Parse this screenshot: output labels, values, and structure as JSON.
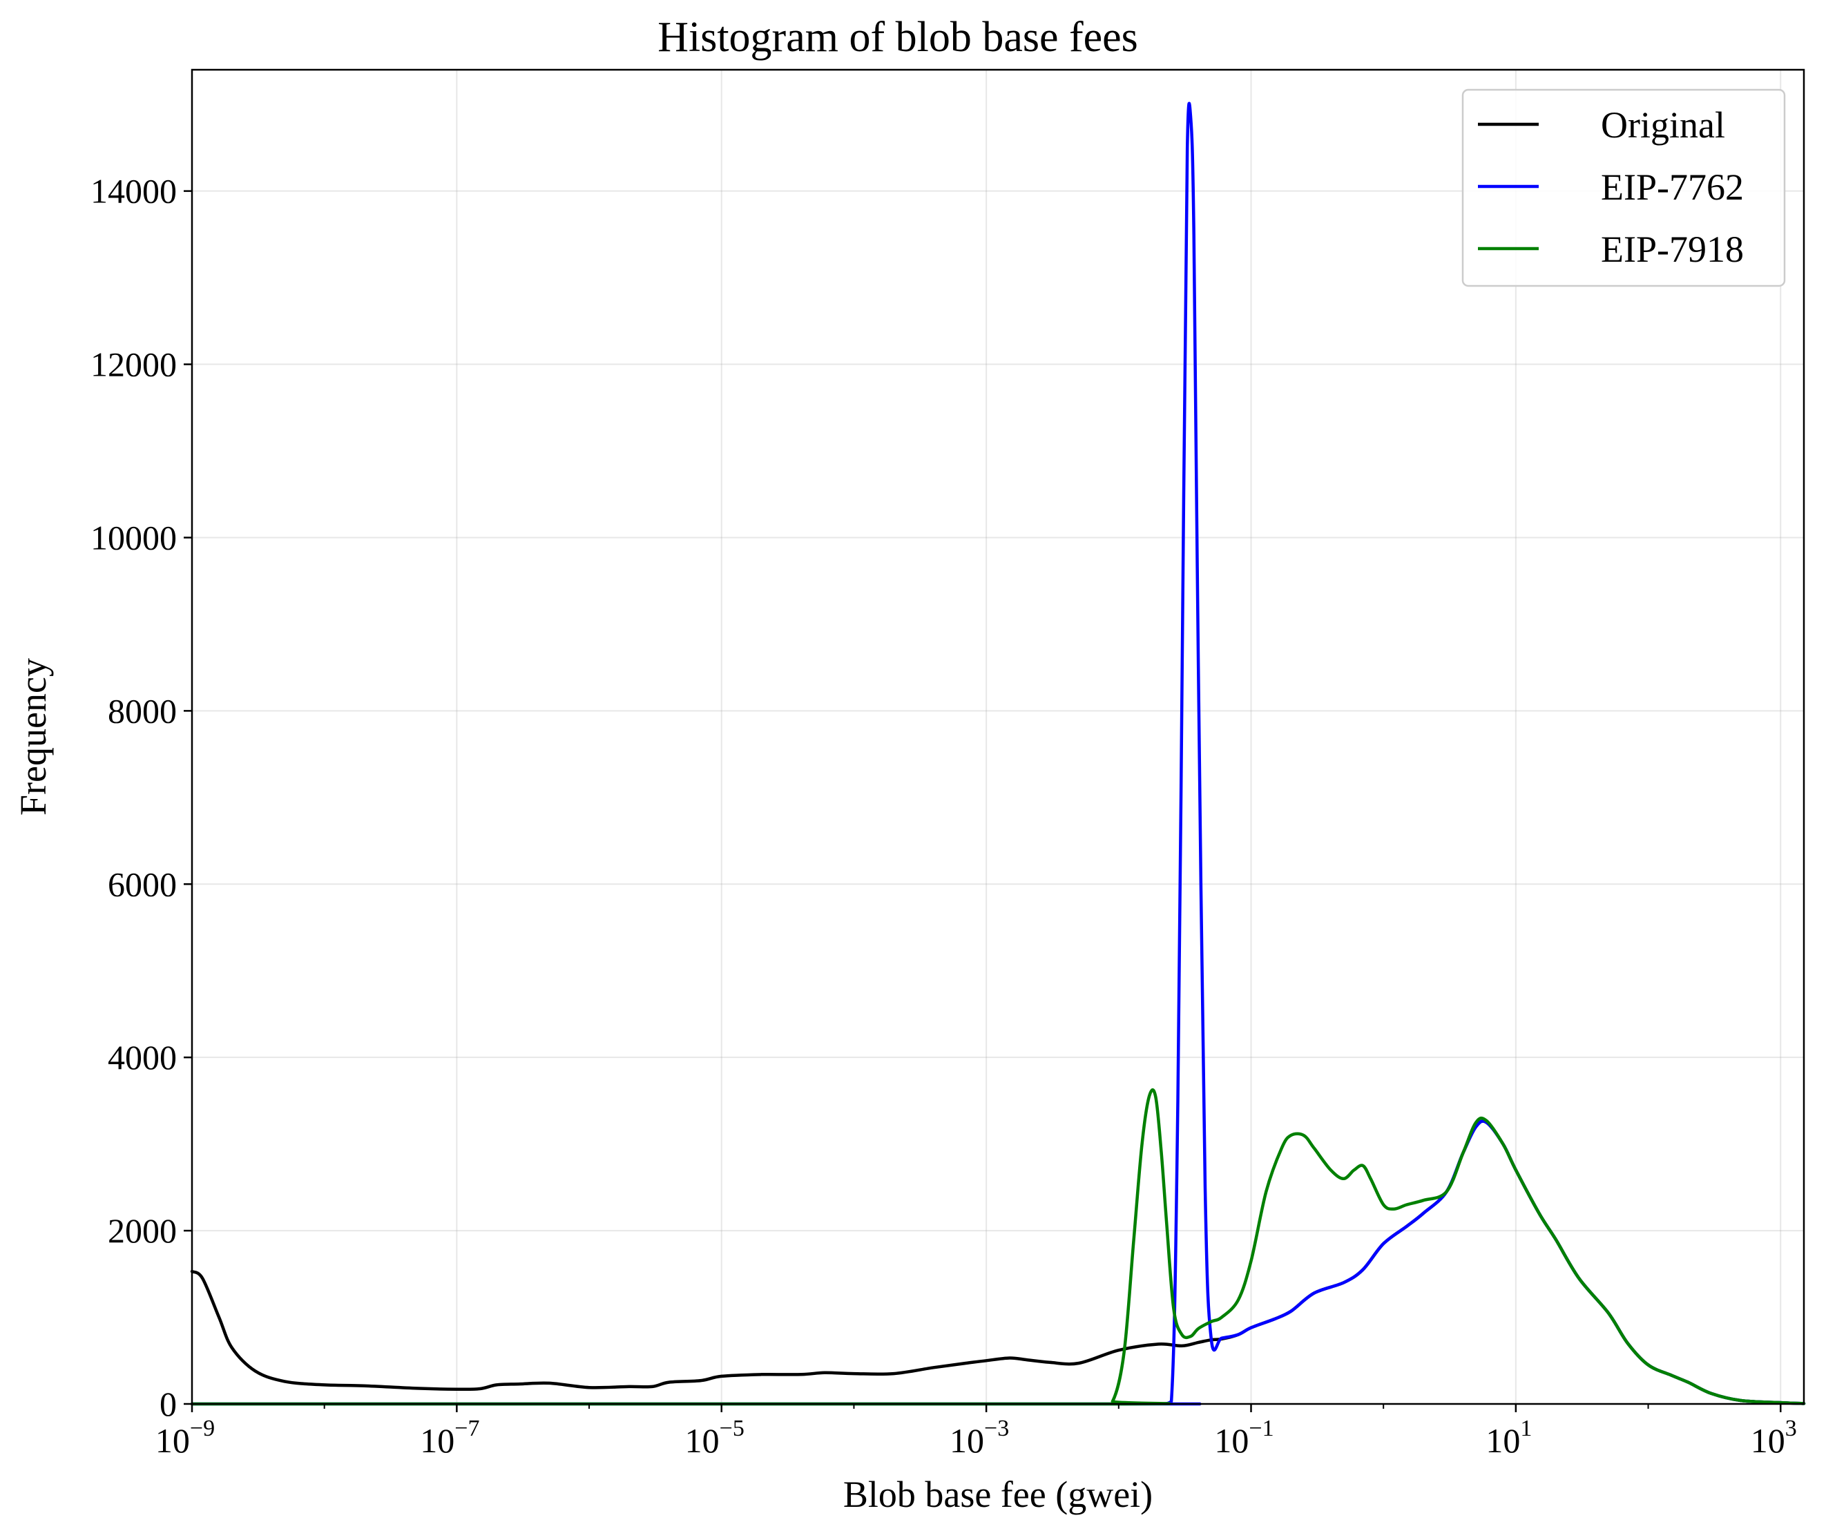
{
  "chart_data": {
    "type": "line",
    "title": "Histogram of blob base fees",
    "xlabel": "Blob base fee (gwei)",
    "ylabel": "Frequency",
    "xscale": "log",
    "xlim": [
      1e-09,
      1500
    ],
    "ylim": [
      0,
      15400
    ],
    "grid": true,
    "legend_position": "top-right",
    "x_ticks": [
      {
        "base": "10",
        "exp": "−9",
        "value": 1e-09
      },
      {
        "base": "10",
        "exp": "−7",
        "value": 1e-07
      },
      {
        "base": "10",
        "exp": "−5",
        "value": 1e-05
      },
      {
        "base": "10",
        "exp": "−3",
        "value": 0.001
      },
      {
        "base": "10",
        "exp": "−1",
        "value": 0.1
      },
      {
        "base": "10",
        "exp": "1",
        "value": 10
      },
      {
        "base": "10",
        "exp": "3",
        "value": 1000
      }
    ],
    "y_ticks": [
      {
        "label": "0",
        "value": 0
      },
      {
        "label": "2000",
        "value": 2000
      },
      {
        "label": "4000",
        "value": 4000
      },
      {
        "label": "6000",
        "value": 6000
      },
      {
        "label": "8000",
        "value": 8000
      },
      {
        "label": "10000",
        "value": 10000
      },
      {
        "label": "12000",
        "value": 12000
      },
      {
        "label": "14000",
        "value": 14000
      }
    ],
    "series": [
      {
        "name": "Original",
        "color": "#000000",
        "x": [
          1e-09,
          1.2e-09,
          1.6e-09,
          2e-09,
          3e-09,
          5e-09,
          1e-08,
          2e-08,
          5e-08,
          1e-07,
          1.5e-07,
          2e-07,
          3e-07,
          5e-07,
          1e-06,
          2e-06,
          3e-06,
          4e-06,
          7e-06,
          1e-05,
          2e-05,
          4e-05,
          6e-05,
          0.0001,
          0.0002,
          0.0004,
          0.0007,
          0.001,
          0.0015,
          0.002,
          0.003,
          0.005,
          0.01,
          0.02,
          0.03,
          0.04,
          0.05,
          0.06,
          0.08,
          0.1,
          0.15,
          0.2,
          0.3,
          0.5,
          0.7,
          1,
          1.5,
          2,
          3,
          4,
          5,
          6,
          8,
          10,
          15,
          20,
          30,
          50,
          70,
          100,
          150,
          200,
          300,
          500,
          1000,
          1500
        ],
        "y": [
          1530,
          1450,
          1000,
          650,
          380,
          260,
          220,
          210,
          180,
          170,
          175,
          220,
          230,
          240,
          190,
          200,
          200,
          250,
          270,
          320,
          340,
          340,
          360,
          350,
          350,
          420,
          470,
          500,
          530,
          510,
          480,
          470,
          620,
          690,
          670,
          710,
          740,
          750,
          800,
          880,
          980,
          1070,
          1280,
          1400,
          1550,
          1850,
          2050,
          2200,
          2450,
          2900,
          3200,
          3250,
          3000,
          2700,
          2200,
          1900,
          1450,
          1050,
          700,
          450,
          330,
          250,
          120,
          40,
          15,
          5
        ]
      },
      {
        "name": "EIP-7762",
        "color": "#0000ff",
        "x": [
          1e-09,
          0.01,
          0.02,
          0.025,
          0.028,
          0.031,
          0.033,
          0.035,
          0.037,
          0.04,
          0.045,
          0.05,
          0.06,
          0.08,
          0.1,
          0.15,
          0.2,
          0.3,
          0.5,
          0.7,
          1,
          1.5,
          2,
          3,
          4,
          5,
          6,
          8,
          10,
          15,
          20,
          30,
          50,
          70,
          100,
          150,
          200,
          300,
          500,
          1000,
          1500
        ],
        "y": [
          0,
          0,
          0,
          30,
          3500,
          10500,
          14500,
          14850,
          13500,
          8500,
          2500,
          750,
          760,
          800,
          880,
          980,
          1070,
          1280,
          1400,
          1550,
          1850,
          2050,
          2200,
          2450,
          2900,
          3200,
          3250,
          3000,
          2700,
          2200,
          1900,
          1450,
          1050,
          700,
          450,
          330,
          250,
          120,
          40,
          15,
          5
        ]
      },
      {
        "name": "EIP-7918",
        "color": "#008000",
        "x": [
          1e-09,
          0.007,
          0.009,
          0.011,
          0.013,
          0.015,
          0.017,
          0.019,
          0.021,
          0.023,
          0.026,
          0.03,
          0.035,
          0.04,
          0.05,
          0.06,
          0.08,
          0.1,
          0.13,
          0.17,
          0.2,
          0.25,
          0.3,
          0.4,
          0.5,
          0.6,
          0.7,
          0.8,
          1,
          1.2,
          1.5,
          2,
          3,
          4,
          5,
          6,
          8,
          10,
          15,
          20,
          30,
          50,
          70,
          100,
          150,
          200,
          300,
          500,
          1000,
          1500
        ],
        "y": [
          0,
          0,
          30,
          600,
          1900,
          3000,
          3550,
          3550,
          2900,
          2100,
          1100,
          800,
          780,
          870,
          950,
          1000,
          1200,
          1650,
          2450,
          2950,
          3100,
          3100,
          2950,
          2700,
          2600,
          2700,
          2750,
          2600,
          2300,
          2250,
          2300,
          2350,
          2450,
          2900,
          3250,
          3270,
          3000,
          2700,
          2200,
          1900,
          1450,
          1050,
          700,
          450,
          330,
          250,
          120,
          40,
          15,
          5
        ]
      }
    ]
  }
}
